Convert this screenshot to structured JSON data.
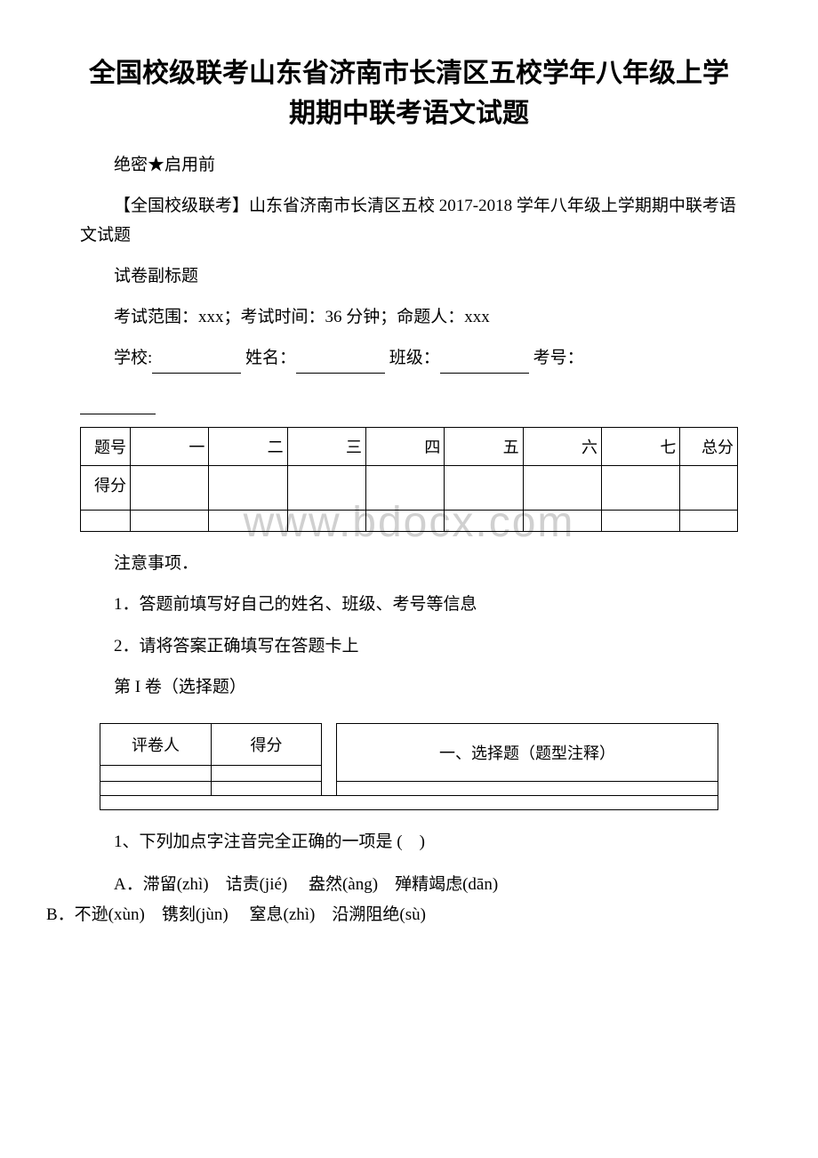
{
  "title": "全国校级联考山东省济南市长清区五校学年八年级上学期期中联考语文试题",
  "confidential": "绝密★启用前",
  "subtitle": "【全国校级联考】山东省济南市长清区五校 2017-2018 学年八年级上学期期中联考语文试题",
  "paper_subtitle": "试卷副标题",
  "exam_info": "考试范围：xxx；考试时间：36 分钟；命题人：xxx",
  "fill_labels": {
    "school": "学校:",
    "name": "姓名：",
    "class": "班级：",
    "exam_no": "考号："
  },
  "score_table": {
    "row1_header": "题号",
    "row2_header": "得分",
    "columns": [
      "一",
      "二",
      "三",
      "四",
      "五",
      "六",
      "七"
    ],
    "total": "总分"
  },
  "notice_title": "注意事项．",
  "notice_items": [
    "1．答题前填写好自己的姓名、班级、考号等信息",
    "2．请将答案正确填写在答题卡上"
  ],
  "volume_label": "第 I 卷（选择题）",
  "section_table": {
    "grader": "评卷人",
    "score": "得分",
    "section_title": "一、选择题（题型注释）"
  },
  "questions": {
    "q1": {
      "stem": "1、下列加点字注音完全正确的一项是 (　)",
      "optA": "A．滞留(zhì)　诘责(jié)　 盎然(àng)　殚精竭虑(dān)",
      "optB": "B．不逊(xùn)　镌刻(jùn)　 窒息(zhì)　沿溯阻绝(sù)"
    }
  },
  "watermark_text": "www.bdocx.com",
  "colors": {
    "text": "#000000",
    "background": "#ffffff",
    "watermark": "#d0d0d0",
    "border": "#000000"
  }
}
